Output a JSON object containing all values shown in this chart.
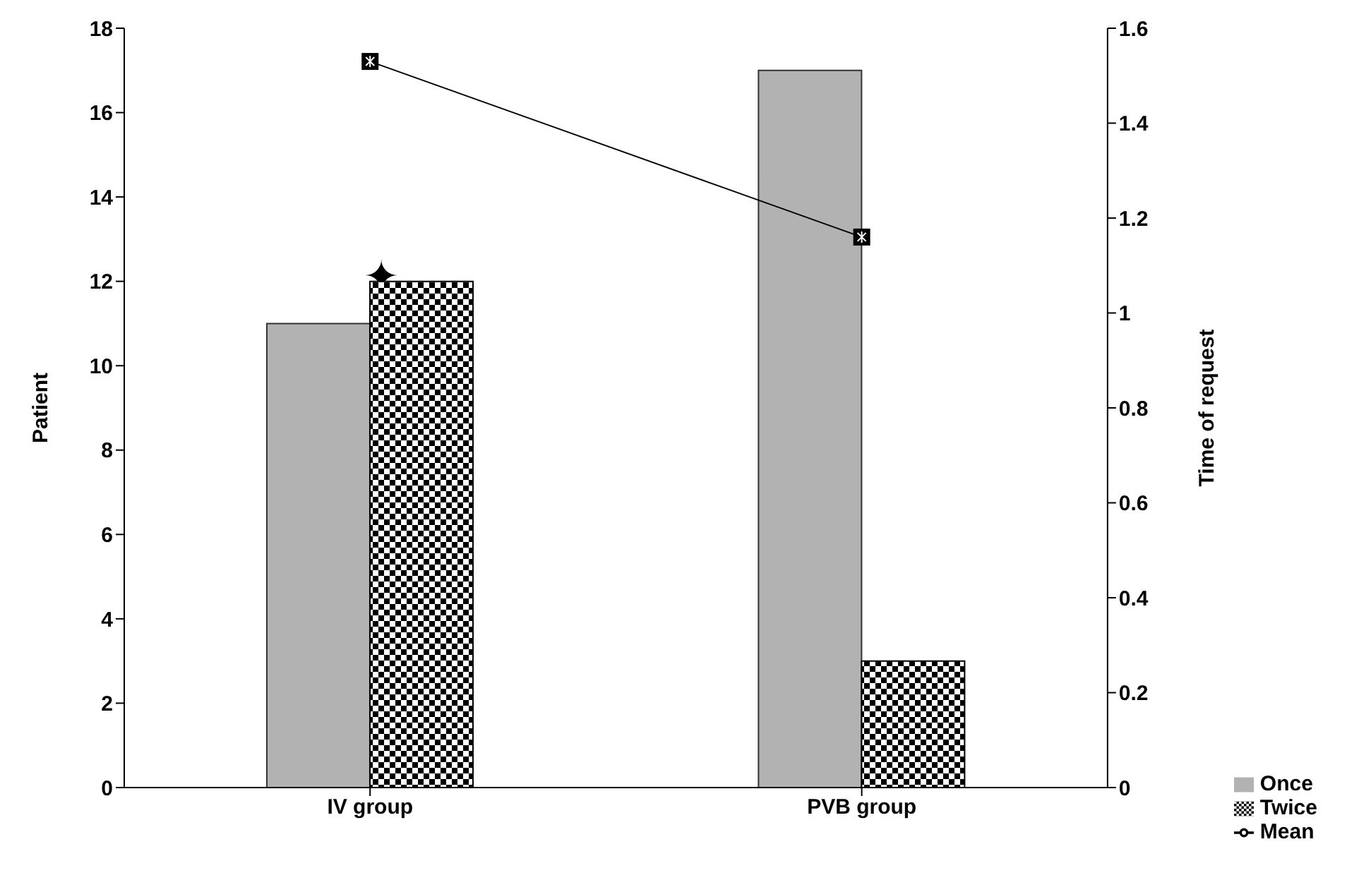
{
  "chart_data": {
    "type": "bar",
    "categories": [
      "IV group",
      "PVB group"
    ],
    "series": [
      {
        "name": "Once",
        "color": "#b2b2b2",
        "values": [
          11,
          17
        ]
      },
      {
        "name": "Twice",
        "color": "#000000",
        "values": [
          12,
          3
        ]
      },
      {
        "name": "Mean",
        "type": "line",
        "axis": "y2",
        "color": "#000000",
        "values": [
          1.53,
          1.16
        ]
      }
    ],
    "ylabel": "Patient",
    "y2label": "Time of request",
    "ylim": [
      0,
      18
    ],
    "yticks": [
      0,
      2,
      4,
      6,
      8,
      10,
      12,
      14,
      16,
      18
    ],
    "y2lim": [
      0,
      1.6
    ],
    "y2ticks": [
      0,
      0.2,
      0.4,
      0.6,
      0.8,
      1,
      1.2,
      1.4,
      1.6
    ],
    "annotations": [
      "✦"
    ],
    "legend": "bottom right",
    "marker": "square"
  }
}
